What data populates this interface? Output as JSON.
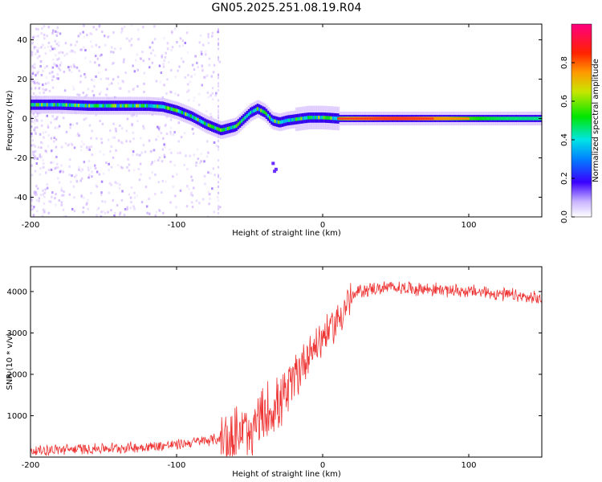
{
  "title": "GN05.2025.251.08.19.R04",
  "chart_data": [
    {
      "type": "heatmap",
      "xlabel": "Height of straight line (km)",
      "ylabel": "Frequency (Hz)",
      "xlim": [
        -200,
        150
      ],
      "ylim": [
        -50,
        48
      ],
      "xticks": [
        -200,
        -100,
        0,
        100
      ],
      "yticks": [
        -40,
        -20,
        0,
        20,
        40
      ],
      "colorbar": {
        "label": "Normalized spectral amplitude",
        "range": [
          0.0,
          1.0
        ],
        "ticks": [
          "0.0",
          "0.2",
          "0.4",
          "0.6",
          "0.8"
        ]
      },
      "frequency_track": {
        "x": [
          -200,
          -180,
          -160,
          -140,
          -120,
          -110,
          -100,
          -90,
          -80,
          -70,
          -60,
          -50,
          -45,
          -40,
          -35,
          -30,
          -25,
          -20,
          -10,
          0,
          10,
          30,
          60,
          100,
          150
        ],
        "y": [
          7,
          7,
          6.5,
          6.5,
          6.5,
          6,
          4,
          1,
          -3,
          -6,
          -4,
          3,
          5,
          3,
          -1,
          -2,
          -1,
          -0.5,
          0.5,
          0.5,
          0,
          0,
          0,
          0,
          0
        ]
      }
    },
    {
      "type": "line",
      "xlabel": "Height of straight line (km)",
      "ylabel": "SNR (10 * v/v)",
      "xlim": [
        -200,
        150
      ],
      "ylim": [
        0,
        4600
      ],
      "xticks": [
        -200,
        -100,
        0,
        100
      ],
      "yticks": [
        1000,
        2000,
        3000,
        4000
      ],
      "color": "#ee3333",
      "series": [
        {
          "name": "SNR",
          "x": [
            -200,
            -180,
            -160,
            -140,
            -120,
            -100,
            -90,
            -80,
            -70,
            -60,
            -55,
            -50,
            -45,
            -40,
            -35,
            -30,
            -25,
            -20,
            -15,
            -10,
            -5,
            0,
            5,
            10,
            15,
            20,
            25,
            30,
            40,
            50,
            60,
            70,
            80,
            90,
            100,
            110,
            120,
            130,
            140,
            150
          ],
          "y": [
            150,
            180,
            200,
            220,
            250,
            300,
            350,
            400,
            450,
            520,
            600,
            700,
            850,
            1000,
            1150,
            1300,
            1500,
            1800,
            2200,
            2500,
            2700,
            2900,
            3100,
            3300,
            3600,
            3850,
            4000,
            4050,
            4080,
            4100,
            4080,
            4060,
            4050,
            4020,
            4000,
            3980,
            3950,
            3900,
            3850,
            3800
          ]
        }
      ]
    }
  ]
}
